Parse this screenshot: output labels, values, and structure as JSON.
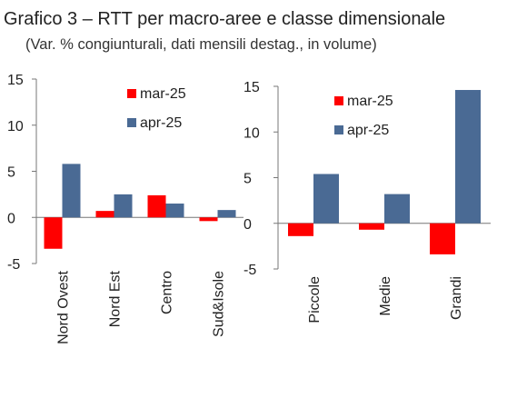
{
  "title": "Grafico 3 – RTT per macro-aree e classe dimensionale",
  "subtitle": "(Var. % congiunturali, dati mensili destag., in volume)",
  "colors": {
    "mar": "#ff0000",
    "apr": "#4a6a94"
  },
  "chart_data": [
    {
      "type": "bar",
      "categories": [
        "Nord Ovest",
        "Nord Est",
        "Centro",
        "Sud&Isole"
      ],
      "series": [
        {
          "name": "mar-25",
          "values": [
            -3.4,
            0.7,
            2.4,
            -0.4
          ]
        },
        {
          "name": "apr-25",
          "values": [
            5.8,
            2.5,
            1.5,
            0.8
          ]
        }
      ],
      "yticks": [
        -5,
        0,
        5,
        10,
        15
      ],
      "ylim": [
        -5,
        15
      ],
      "legend": "top-right",
      "grid": false
    },
    {
      "type": "bar",
      "categories": [
        "Piccole",
        "Medie",
        "Grandi"
      ],
      "series": [
        {
          "name": "mar-25",
          "values": [
            -1.4,
            -0.7,
            -3.4
          ]
        },
        {
          "name": "apr-25",
          "values": [
            5.4,
            3.2,
            14.6
          ]
        }
      ],
      "yticks": [
        -5,
        0,
        5,
        10,
        15
      ],
      "ylim": [
        -5,
        15
      ],
      "legend": "top-right",
      "grid": false
    }
  ]
}
